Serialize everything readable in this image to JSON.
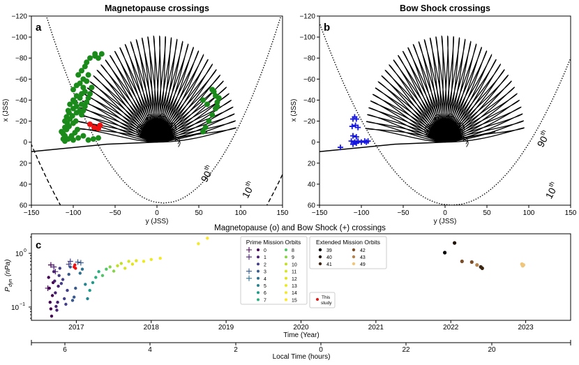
{
  "panel_a": {
    "label": "a",
    "title": "Magnetopause crossings",
    "xlabel": "y (JSS)",
    "ylabel": "x (JSS)",
    "xlim": [
      -150,
      150
    ],
    "ylim": [
      60,
      -120
    ],
    "xticks": [
      "−150",
      "−100",
      "−50",
      "0",
      "50",
      "100",
      "150"
    ],
    "yticks": [
      "−120",
      "−100",
      "−80",
      "−60",
      "−40",
      "−20",
      "0",
      "20",
      "40",
      "60"
    ],
    "annot_90": "90",
    "annot_90_sup": "th",
    "annot_10": "10",
    "annot_10_sup": "th"
  },
  "panel_b": {
    "label": "b",
    "title": "Bow Shock crossings",
    "xlabel": "y (JSS)",
    "ylabel": "x (JSS)",
    "xticks": [
      "−150",
      "−100",
      "−50",
      "0",
      "50",
      "100",
      "150"
    ],
    "yticks": [
      "−120",
      "−100",
      "−80",
      "−60",
      "−40",
      "−20",
      "0",
      "20",
      "40",
      "60"
    ],
    "annot_90": "90",
    "annot_90_sup": "th",
    "annot_10": "10",
    "annot_10_sup": "th"
  },
  "panel_c": {
    "label": "c",
    "title": "Magnetopause (o) and Bow Shock (+) crossings",
    "ylabel_main": "P",
    "ylabel_sub": "dyn",
    "ylabel_unit": "(nPa)",
    "ytick_1": "10",
    "ytick_1_exp": "0",
    "ytick_01": "10",
    "ytick_01_exp": "−1",
    "xlabel": "Time (Year)",
    "years": [
      "2017",
      "2018",
      "2019",
      "2020",
      "2021",
      "2022",
      "2023"
    ],
    "lt_label": "Local Time (hours)",
    "lt_ticks": [
      "6",
      "4",
      "2",
      "0",
      "22",
      "20"
    ],
    "prime_legend_title": "Prime Mission Orbits",
    "prime_orbits": [
      "0",
      "1",
      "2",
      "3",
      "4",
      "5",
      "6",
      "7",
      "8",
      "9",
      "10",
      "11",
      "12",
      "13",
      "14",
      "15"
    ],
    "extended_legend_title": "Extended Mission Orbits",
    "extended_orbits": [
      "39",
      "40",
      "41",
      "42",
      "43",
      "49"
    ],
    "this_study_line1": "This",
    "this_study_line2": "study"
  },
  "colors": {
    "mp_crossing": "#1a8a1a",
    "mp_this_study": "#ee1111",
    "bs_crossing": "#1515e0",
    "prime": [
      "#440154",
      "#482071",
      "#433e85",
      "#38598c",
      "#2d708e",
      "#25858e",
      "#1e9b8a",
      "#2ab07f",
      "#52c569",
      "#86d549",
      "#c2df23",
      "#d6e621",
      "#e2e418",
      "#ecea1d",
      "#f3e82a",
      "#fde725"
    ],
    "extended": [
      "#000000",
      "#1f1208",
      "#3b2612",
      "#7a4e28",
      "#b58350",
      "#f0c67c"
    ]
  },
  "chart_data": [
    {
      "type": "scatter",
      "title": "Magnetopause crossings",
      "xlabel": "y (JSS)",
      "ylabel": "x (JSS)",
      "xlim": [
        -150,
        150
      ],
      "ylim": [
        60,
        -120
      ],
      "background": "Juno orbit trajectories (black); 90th and 10th percentile magnetopause boundaries (dotted, dashed)",
      "series": [
        {
          "name": "Magnetopause crossings",
          "points": [
            [
              -110,
              -1
            ],
            [
              -106,
              -3
            ],
            [
              -102,
              -6
            ],
            [
              -98,
              -9
            ],
            [
              -95,
              -12
            ],
            [
              -110,
              -6
            ],
            [
              -112,
              -8
            ],
            [
              -108,
              -12
            ],
            [
              -105,
              -15
            ],
            [
              -100,
              -18
            ],
            [
              -97,
              -20
            ],
            [
              -110,
              -14
            ],
            [
              -107,
              -18
            ],
            [
              -104,
              -22
            ],
            [
              -101,
              -25
            ],
            [
              -96,
              -28
            ],
            [
              -92,
              -30
            ],
            [
              -108,
              -24
            ],
            [
              -105,
              -28
            ],
            [
              -100,
              -32
            ],
            [
              -96,
              -34
            ],
            [
              -90,
              -36
            ],
            [
              -104,
              -36
            ],
            [
              -100,
              -40
            ],
            [
              -96,
              -44
            ],
            [
              -90,
              -46
            ],
            [
              -86,
              -48
            ],
            [
              -100,
              -50
            ],
            [
              -96,
              -54
            ],
            [
              -92,
              -56
            ],
            [
              -88,
              -60
            ],
            [
              -82,
              -64
            ],
            [
              -94,
              -64
            ],
            [
              -90,
              -68
            ],
            [
              -86,
              -72
            ],
            [
              -84,
              -76
            ],
            [
              -80,
              -80
            ],
            [
              -74,
              -82
            ],
            [
              -70,
              -80
            ],
            [
              -74,
              -84
            ],
            [
              -66,
              -84
            ],
            [
              -112,
              -3
            ],
            [
              -114,
              -10
            ],
            [
              -110,
              -20
            ],
            [
              -106,
              -30
            ],
            [
              -98,
              -38
            ],
            [
              -92,
              -42
            ],
            [
              -88,
              -52
            ],
            [
              -84,
              -58
            ],
            [
              -100,
              -2
            ],
            [
              -94,
              -4
            ],
            [
              -88,
              -6
            ],
            [
              -82,
              -2
            ],
            [
              -76,
              -3
            ],
            [
              -70,
              -4
            ],
            [
              -90,
              -26
            ],
            [
              -88,
              -30
            ],
            [
              -86,
              -34
            ],
            [
              -84,
              -38
            ],
            [
              -82,
              -42
            ],
            [
              -80,
              -46
            ],
            [
              -78,
              -52
            ],
            [
              55,
              -10
            ],
            [
              58,
              -14
            ],
            [
              62,
              -20
            ],
            [
              66,
              -26
            ],
            [
              70,
              -32
            ],
            [
              72,
              -38
            ],
            [
              74,
              -42
            ],
            [
              68,
              -48
            ],
            [
              66,
              -50
            ],
            [
              70,
              -44
            ],
            [
              72,
              -34
            ],
            [
              60,
              -36
            ],
            [
              55,
              -40
            ]
          ]
        },
        {
          "name": "This study",
          "points": [
            [
              -80,
              -17
            ],
            [
              -75,
              -14
            ],
            [
              -70,
              -13
            ],
            [
              -68,
              -16
            ]
          ]
        }
      ]
    },
    {
      "type": "scatter",
      "title": "Bow Shock crossings",
      "xlabel": "y (JSS)",
      "ylabel": "x (JSS)",
      "xlim": [
        -150,
        150
      ],
      "ylim": [
        60,
        -120
      ],
      "background": "Juno orbit trajectories (black); 90th and 10th percentile bow shock boundaries (dotted, dashed)",
      "series": [
        {
          "name": "Bow Shock crossings",
          "points": [
            [
              -108,
              -24
            ],
            [
              -110,
              -22
            ],
            [
              -106,
              -22
            ],
            [
              -107,
              -16
            ],
            [
              -111,
              -15
            ],
            [
              -104,
              -14
            ],
            [
              -110,
              -6
            ],
            [
              -106,
              -5
            ],
            [
              -112,
              -1
            ],
            [
              -108,
              0
            ],
            [
              -104,
              -1
            ],
            [
              -100,
              0
            ],
            [
              -96,
              -1
            ],
            [
              -94,
              0
            ],
            [
              -92,
              -1
            ],
            [
              -125,
              5
            ],
            [
              -110,
              2
            ],
            [
              -106,
              1
            ]
          ]
        }
      ]
    },
    {
      "type": "scatter",
      "title": "Magnetopause (o) and Bow Shock (+) crossings",
      "xlabel": "Time (Year)",
      "ylabel": "P_dyn (nPa)",
      "yscale": "log",
      "ylim": [
        0.055,
        2.3
      ],
      "xlim": [
        2016.4,
        2023.6
      ],
      "secondary_xlabel": "Local Time (hours)",
      "series": [
        {
          "name": "Magnetopause orbits 0-3",
          "marker": "o",
          "points": [
            [
              2016.63,
              0.35
            ],
            [
              2016.64,
              0.22
            ],
            [
              2016.65,
              0.12
            ],
            [
              2016.66,
              0.09
            ],
            [
              2016.67,
              0.066
            ],
            [
              2016.68,
              0.16
            ],
            [
              2016.69,
              0.28
            ],
            [
              2016.7,
              0.45
            ],
            [
              2016.71,
              0.3
            ],
            [
              2016.72,
              0.18
            ],
            [
              2016.73,
              0.1
            ],
            [
              2016.74,
              0.085
            ],
            [
              2016.75,
              0.12
            ],
            [
              2016.76,
              0.24
            ],
            [
              2016.77,
              0.38
            ],
            [
              2016.78,
              0.52
            ],
            [
              2016.8,
              0.27
            ],
            [
              2016.82,
              0.32
            ],
            [
              2016.84,
              0.14
            ],
            [
              2016.86,
              0.11
            ],
            [
              2016.88,
              0.2
            ],
            [
              2016.9,
              0.4
            ],
            [
              2016.92,
              0.55
            ],
            [
              2016.95,
              0.13
            ],
            [
              2016.97,
              0.15
            ],
            [
              2016.99,
              0.22
            ]
          ]
        },
        {
          "name": "Magnetopause orbits 4-15",
          "marker": "o",
          "points": [
            [
              2017.05,
              0.42
            ],
            [
              2017.08,
              0.5
            ],
            [
              2017.12,
              0.26
            ],
            [
              2017.15,
              0.14
            ],
            [
              2017.18,
              0.2
            ],
            [
              2017.22,
              0.28
            ],
            [
              2017.26,
              0.35
            ],
            [
              2017.3,
              0.45
            ],
            [
              2017.35,
              0.38
            ],
            [
              2017.4,
              0.5
            ],
            [
              2017.45,
              0.55
            ],
            [
              2017.5,
              0.46
            ],
            [
              2017.55,
              0.58
            ],
            [
              2017.6,
              0.64
            ],
            [
              2017.65,
              0.52
            ],
            [
              2017.7,
              0.7
            ],
            [
              2017.75,
              0.62
            ],
            [
              2017.8,
              0.72
            ],
            [
              2017.9,
              0.7
            ],
            [
              2018.0,
              0.76
            ],
            [
              2018.12,
              0.8
            ],
            [
              2018.63,
              1.5
            ],
            [
              2018.75,
              1.9
            ]
          ]
        },
        {
          "name": "Bow shock",
          "marker": "+",
          "points": [
            [
              2016.62,
              0.22
            ],
            [
              2016.66,
              0.6
            ],
            [
              2016.7,
              0.55
            ],
            [
              2016.72,
              0.45
            ],
            [
              2016.9,
              0.62
            ],
            [
              2016.92,
              0.7
            ],
            [
              2017.02,
              0.68
            ],
            [
              2017.06,
              0.66
            ]
          ]
        },
        {
          "name": "This study",
          "marker": "o",
          "points": [
            [
              2016.97,
              0.55
            ],
            [
              2016.98,
              0.6
            ],
            [
              2016.99,
              0.52
            ]
          ]
        },
        {
          "name": "Extended mission orbits",
          "marker": "o",
          "points": [
            [
              2021.92,
              1.02
            ],
            [
              2022.05,
              1.55
            ],
            [
              2022.15,
              0.7
            ],
            [
              2022.28,
              0.68
            ],
            [
              2022.35,
              0.6
            ],
            [
              2022.4,
              0.55
            ],
            [
              2022.42,
              0.52
            ],
            [
              2022.95,
              0.62
            ],
            [
              2022.96,
              0.58
            ],
            [
              2022.97,
              0.6
            ]
          ]
        }
      ]
    }
  ]
}
